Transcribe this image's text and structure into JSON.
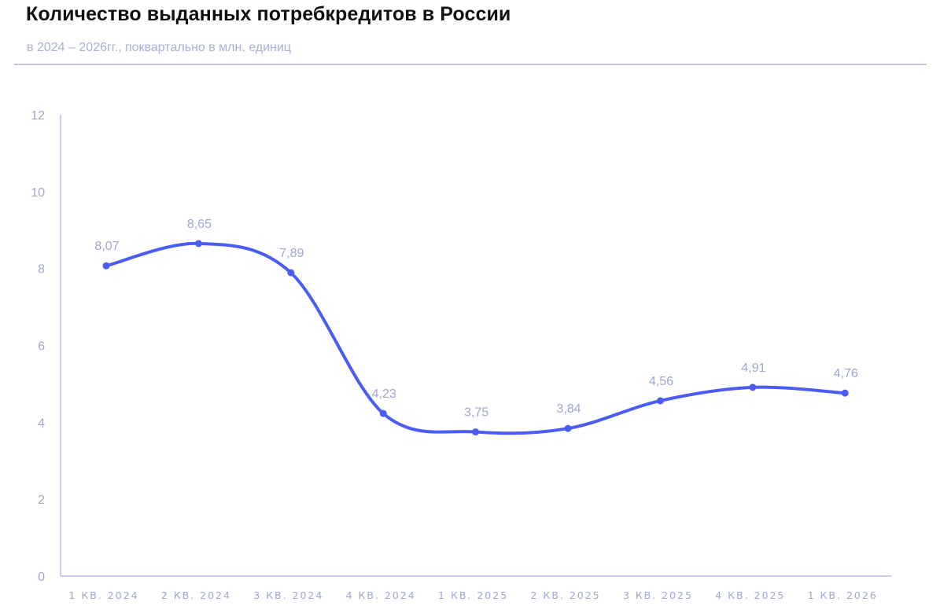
{
  "header": {
    "title": "Количество выданных потребкредитов в России",
    "subtitle": "в 2024 – 2026гг., поквартально в млн. единиц"
  },
  "colors": {
    "line": "#4a5cf6",
    "axis": "#b9bde3",
    "label": "#a0a6d6",
    "divider": "#c3c6e6"
  },
  "chart_data": {
    "type": "line",
    "title": "Количество выданных потребкредитов в России",
    "subtitle": "в 2024 – 2026гг., поквартально в млн. единиц",
    "xlabel": "",
    "ylabel": "",
    "categories": [
      "1 КВ. 2024",
      "2 КВ. 2024",
      "3 КВ. 2024",
      "4 КВ. 2024",
      "1 КВ. 2025",
      "2 КВ. 2025",
      "3 КВ. 2025",
      "4 КВ. 2025",
      "1 КВ. 2026"
    ],
    "values": [
      8.07,
      8.65,
      7.89,
      4.23,
      3.75,
      3.84,
      4.56,
      4.91,
      4.76
    ],
    "value_labels": [
      "8,07",
      "8,65",
      "7,89",
      "4,23",
      "3,75",
      "3,84",
      "4,56",
      "4,91",
      "4,76"
    ],
    "ylim": [
      0,
      12
    ],
    "yticks": [
      0,
      2,
      4,
      6,
      8,
      10,
      12
    ],
    "grid": false,
    "legend": null,
    "smooth": true
  }
}
